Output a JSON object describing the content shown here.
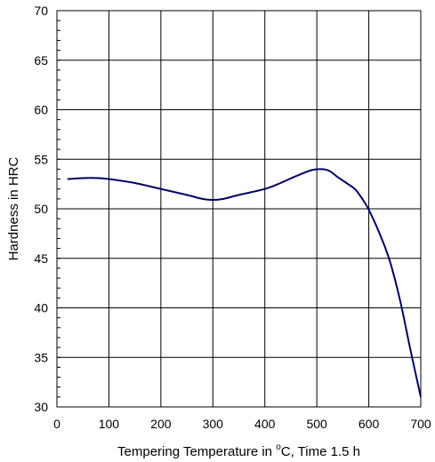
{
  "chart_data": {
    "type": "line",
    "title": "",
    "xlabel_parts": {
      "prefix": "Tempering Temperature in ",
      "superscript": "o",
      "suffix": "C, Time 1.5 h"
    },
    "ylabel": "Hardness in HRC",
    "xlim": [
      0,
      700
    ],
    "ylim": [
      30,
      70
    ],
    "x_ticks": [
      0,
      100,
      200,
      300,
      400,
      500,
      600,
      700
    ],
    "y_ticks": [
      30,
      35,
      40,
      45,
      50,
      55,
      60,
      65,
      70
    ],
    "grid": true,
    "line_color": "#000066",
    "series": [
      {
        "x": [
          20,
          50,
          80,
          100,
          150,
          200,
          250,
          280,
          300,
          320,
          350,
          400,
          430,
          460,
          490,
          510,
          525,
          540,
          560,
          575,
          590,
          600,
          620,
          640,
          660,
          680,
          700
        ],
        "values": [
          53.0,
          53.1,
          53.1,
          53.0,
          52.6,
          52.0,
          51.4,
          51.0,
          50.9,
          51.0,
          51.4,
          52.0,
          52.6,
          53.3,
          53.9,
          54.0,
          53.8,
          53.2,
          52.5,
          51.9,
          50.8,
          49.9,
          47.6,
          44.8,
          40.8,
          35.8,
          31.0
        ]
      }
    ]
  }
}
